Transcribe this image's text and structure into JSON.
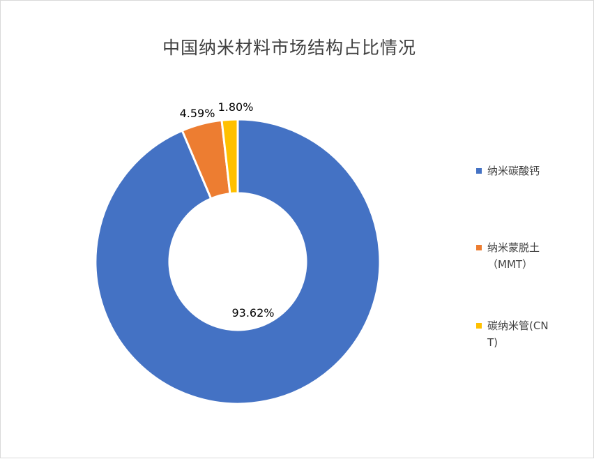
{
  "chart_data": {
    "type": "pie",
    "variant": "doughnut",
    "title": "中国纳米材料市场结构占比情况",
    "slices": [
      {
        "name": "纳米碳酸钙",
        "value": 93.62,
        "label": "93.62%",
        "color": "#4472C4"
      },
      {
        "name": "纳米蒙脱土（MMT）",
        "value": 4.59,
        "label": "4.59%",
        "color": "#ED7D31"
      },
      {
        "name": "碳纳米管(CNT)",
        "value": 1.8,
        "label": "1.80%",
        "color": "#FFC000"
      }
    ],
    "legend": {
      "position": "right",
      "entries": [
        "纳米碳酸钙",
        "纳米蒙脱土（MMT）",
        "碳纳米管(CNT)"
      ]
    }
  }
}
